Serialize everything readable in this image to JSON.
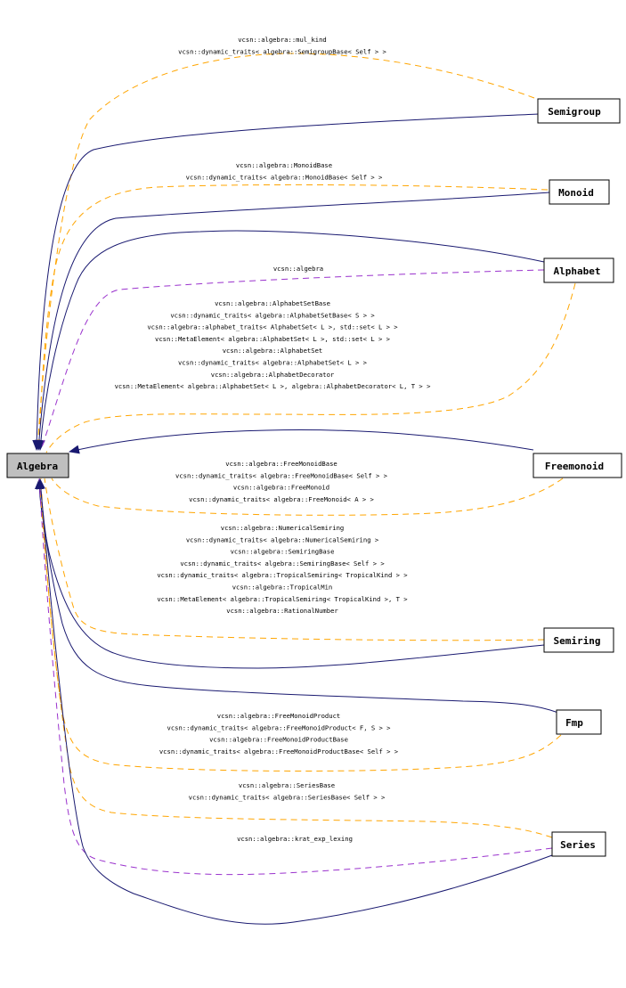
{
  "nodes": {
    "algebra": "Algebra",
    "semigroup": "Semigroup",
    "monoid": "Monoid",
    "alphabet": "Alphabet",
    "freemonoid": "Freemonoid",
    "semiring": "Semiring",
    "fmp": "Fmp",
    "series": "Series"
  },
  "labels": {
    "semigroup": [
      "vcsn::algebra::mul_kind",
      "vcsn::dynamic_traits< algebra::SemigroupBase< Self > >"
    ],
    "monoid": [
      "vcsn::algebra::MonoidBase",
      "vcsn::dynamic_traits< algebra::MonoidBase< Self > >"
    ],
    "alphabet_purple": [
      "vcsn::algebra"
    ],
    "alphabet_orange": [
      "vcsn::algebra::AlphabetSetBase",
      "vcsn::dynamic_traits< algebra::AlphabetSetBase< S > >",
      "vcsn::algebra::alphabet_traits< AlphabetSet< L >, std::set< L > >",
      "vcsn::MetaElement< algebra::AlphabetSet< L >, std::set< L > >",
      "vcsn::algebra::AlphabetSet",
      "vcsn::dynamic_traits< algebra::AlphabetSet< L > >",
      "vcsn::algebra::AlphabetDecorator",
      "vcsn::MetaElement< algebra::AlphabetSet< L >, algebra::AlphabetDecorator< L, T > >"
    ],
    "freemonoid": [
      "vcsn::algebra::FreeMonoidBase",
      "vcsn::dynamic_traits< algebra::FreeMonoidBase< Self > >",
      "vcsn::algebra::FreeMonoid",
      "vcsn::dynamic_traits< algebra::FreeMonoid< A > >"
    ],
    "semiring": [
      "vcsn::algebra::NumericalSemiring",
      "vcsn::dynamic_traits< algebra::NumericalSemiring >",
      "vcsn::algebra::SemiringBase",
      "vcsn::dynamic_traits< algebra::SemiringBase< Self > >",
      "vcsn::dynamic_traits< algebra::TropicalSemiring< TropicalKind > >",
      "vcsn::algebra::TropicalMin",
      "vcsn::MetaElement< algebra::TropicalSemiring< TropicalKind >, T >",
      "vcsn::algebra::RationalNumber"
    ],
    "fmp": [
      "vcsn::algebra::FreeMonoidProduct",
      "vcsn::dynamic_traits< algebra::FreeMonoidProduct< F, S > >",
      "vcsn::algebra::FreeMonoidProductBase",
      "vcsn::dynamic_traits< algebra::FreeMonoidProductBase< Self > >"
    ],
    "series_orange": [
      "vcsn::algebra::SeriesBase",
      "vcsn::dynamic_traits< algebra::SeriesBase< Self > >"
    ],
    "series_purple": [
      "vcsn::algebra::krat_exp_lexing"
    ]
  },
  "colors": {
    "inheritance": "#191970",
    "template": "#ffa500",
    "usage": "#9a32cd",
    "root_fill": "#bfbfbf"
  }
}
